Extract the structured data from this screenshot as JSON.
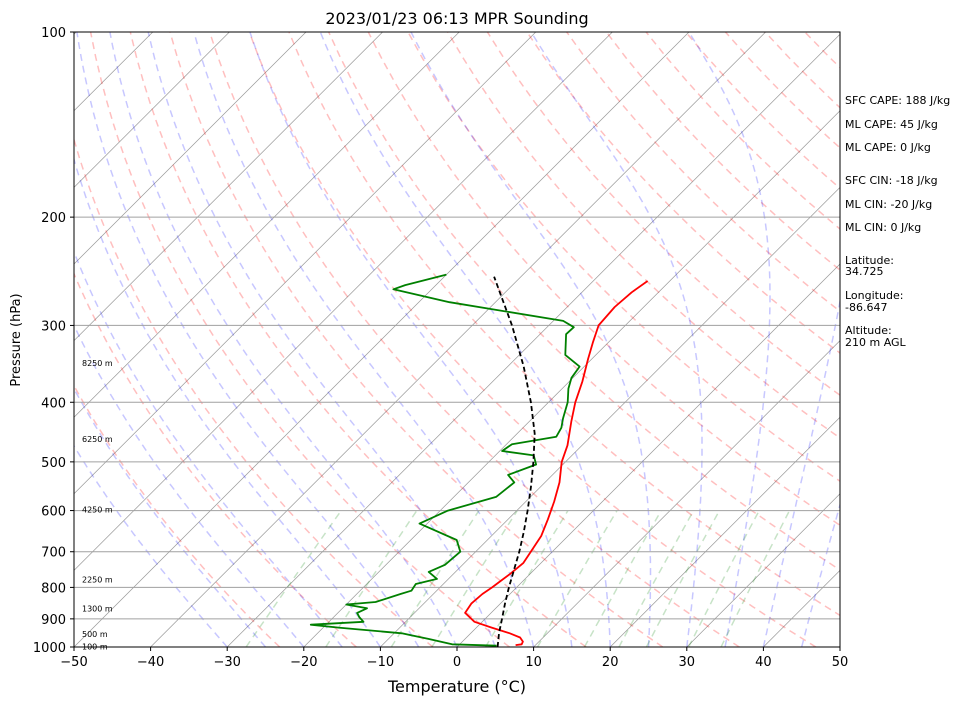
{
  "chart_data": {
    "type": "line",
    "subtype": "skew-t log-p sounding",
    "title": "2023/01/23 06:13 MPR Sounding",
    "xlabel": "Temperature (°C)",
    "ylabel": "Pressure (hPa)",
    "xlim": [
      -50,
      50
    ],
    "ylim": [
      1000,
      100
    ],
    "y_scale": "log",
    "x_ticks": [
      "−50",
      "−40",
      "−30",
      "−20",
      "−10",
      "0",
      "10",
      "20",
      "30",
      "40",
      "50"
    ],
    "x_tick_values": [
      -50,
      -40,
      -30,
      -20,
      -10,
      0,
      10,
      20,
      30,
      40,
      50
    ],
    "y_ticks": [
      "100",
      "200",
      "300",
      "400",
      "500",
      "600",
      "700",
      "800",
      "900",
      "1000"
    ],
    "y_tick_values": [
      100,
      200,
      300,
      400,
      500,
      600,
      700,
      800,
      900,
      1000
    ],
    "grid": "horizontal isobars",
    "height_labels": [
      {
        "text": "100 m",
        "pressure": 998
      },
      {
        "text": "500 m",
        "pressure": 953
      },
      {
        "text": "1300 m",
        "pressure": 866
      },
      {
        "text": "2250 m",
        "pressure": 777
      },
      {
        "text": "4250 m",
        "pressure": 598
      },
      {
        "text": "6250 m",
        "pressure": 459
      },
      {
        "text": "8250 m",
        "pressure": 345
      }
    ],
    "series": [
      {
        "role": "temperature",
        "color": "#ff0000",
        "points": [
          [
            993,
            7.4
          ],
          [
            990,
            8.1
          ],
          [
            980,
            7.9
          ],
          [
            965,
            7.0
          ],
          [
            950,
            5.1
          ],
          [
            930,
            2.0
          ],
          [
            910,
            -1.0
          ],
          [
            880,
            -3.4
          ],
          [
            850,
            -3.8
          ],
          [
            820,
            -3.6
          ],
          [
            800,
            -3.2
          ],
          [
            780,
            -2.9
          ],
          [
            760,
            -2.6
          ],
          [
            730,
            -2.3
          ],
          [
            700,
            -2.8
          ],
          [
            660,
            -3.5
          ],
          [
            620,
            -4.8
          ],
          [
            580,
            -6.3
          ],
          [
            540,
            -8.1
          ],
          [
            500,
            -10.5
          ],
          [
            470,
            -11.9
          ],
          [
            430,
            -14.5
          ],
          [
            400,
            -16.5
          ],
          [
            370,
            -18.3
          ],
          [
            340,
            -20.5
          ],
          [
            320,
            -22.0
          ],
          [
            300,
            -23.5
          ],
          [
            280,
            -23.8
          ],
          [
            265,
            -23.5
          ],
          [
            254,
            -22.9
          ]
        ]
      },
      {
        "role": "dewpoint",
        "color": "#008000",
        "points": [
          [
            995,
            5.0
          ],
          [
            990,
            -1.0
          ],
          [
            970,
            -4.8
          ],
          [
            950,
            -9.0
          ],
          [
            930,
            -18.0
          ],
          [
            920,
            -22.0
          ],
          [
            910,
            -15.5
          ],
          [
            895,
            -16.6
          ],
          [
            880,
            -17.5
          ],
          [
            865,
            -16.8
          ],
          [
            853,
            -20.0
          ],
          [
            845,
            -16.5
          ],
          [
            820,
            -14.3
          ],
          [
            810,
            -13.3
          ],
          [
            790,
            -13.6
          ],
          [
            775,
            -11.5
          ],
          [
            755,
            -13.5
          ],
          [
            735,
            -12.3
          ],
          [
            700,
            -12.0
          ],
          [
            670,
            -14.0
          ],
          [
            630,
            -21.0
          ],
          [
            600,
            -19.0
          ],
          [
            570,
            -14.5
          ],
          [
            540,
            -14.0
          ],
          [
            525,
            -15.8
          ],
          [
            505,
            -13.5
          ],
          [
            488,
            -15.0
          ],
          [
            480,
            -19.7
          ],
          [
            468,
            -19.3
          ],
          [
            455,
            -14.5
          ],
          [
            440,
            -15.0
          ],
          [
            425,
            -16.0
          ],
          [
            400,
            -17.5
          ],
          [
            380,
            -19.2
          ],
          [
            365,
            -20.2
          ],
          [
            350,
            -20.6
          ],
          [
            335,
            -24.0
          ],
          [
            310,
            -26.6
          ],
          [
            302,
            -26.5
          ],
          [
            295,
            -28.7
          ],
          [
            275,
            -46.0
          ],
          [
            262,
            -55.0
          ],
          [
            258,
            -54.0
          ],
          [
            248,
            -50.0
          ]
        ]
      },
      {
        "role": "parcel profile",
        "color": "#000000",
        "dashed": true,
        "points": [
          [
            1000,
            5.3
          ],
          [
            950,
            3.7
          ],
          [
            900,
            2.2
          ],
          [
            850,
            0.6
          ],
          [
            800,
            -1.0
          ],
          [
            750,
            -2.6
          ],
          [
            700,
            -4.3
          ],
          [
            650,
            -6.3
          ],
          [
            600,
            -8.6
          ],
          [
            550,
            -11.2
          ],
          [
            500,
            -14.2
          ],
          [
            450,
            -17.7
          ],
          [
            400,
            -22.3
          ],
          [
            350,
            -27.9
          ],
          [
            300,
            -34.8
          ],
          [
            250,
            -43.5
          ]
        ]
      }
    ],
    "reference_lines": [
      {
        "type": "dry adiabats",
        "color": "#ff0000",
        "style": "dashed"
      },
      {
        "type": "moist adiabats",
        "color": "#0000ff",
        "style": "dashed"
      },
      {
        "type": "mixing ratio",
        "color": "#008000",
        "style": "dashed"
      },
      {
        "type": "isotherms",
        "color": "#808080",
        "style": "solid"
      }
    ]
  },
  "side_panel": {
    "sfc_cape": "SFC CAPE: 188 J/kg",
    "ml_cape_1": "ML CAPE: 45 J/kg",
    "ml_cape_2": "ML CAPE: 0 J/kg",
    "sfc_cin": "SFC CIN: -18 J/kg",
    "ml_cin_1": "ML CIN: -20 J/kg",
    "ml_cin_2": "ML CIN: 0 J/kg",
    "latitude_label": "Latitude:",
    "latitude_value": "34.725",
    "longitude_label": "Longitude:",
    "longitude_value": "-86.647",
    "altitude_label": "Altitude:",
    "altitude_value": "210 m AGL"
  }
}
